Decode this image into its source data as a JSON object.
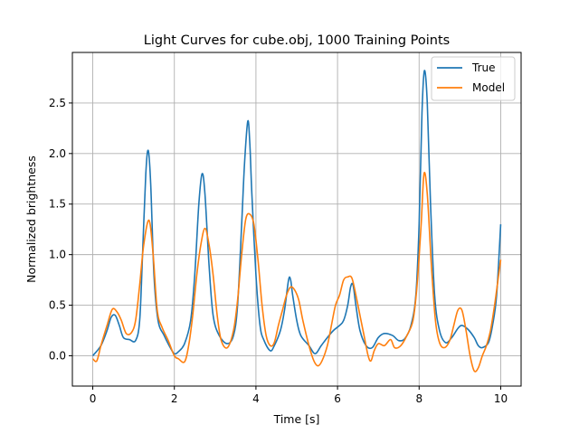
{
  "chart_data": {
    "type": "line",
    "title": "Light Curves for cube.obj, 1000 Training Points",
    "xlabel": "Time [s]",
    "ylabel": "Normalized brightness",
    "xlim": [
      -0.5,
      10.5
    ],
    "ylim": [
      -0.3,
      3.0
    ],
    "xticks": [
      0,
      2,
      4,
      6,
      8,
      10
    ],
    "yticks": [
      0.0,
      0.5,
      1.0,
      1.5,
      2.0,
      2.5
    ],
    "grid": true,
    "legend_position": "top-right",
    "series": [
      {
        "name": "True",
        "color": "#1f77b4",
        "points": [
          [
            0,
            0.0
          ],
          [
            0.2,
            0.1
          ],
          [
            0.35,
            0.25
          ],
          [
            0.45,
            0.38
          ],
          [
            0.55,
            0.4
          ],
          [
            0.65,
            0.3
          ],
          [
            0.75,
            0.18
          ],
          [
            0.9,
            0.16
          ],
          [
            1.05,
            0.15
          ],
          [
            1.15,
            0.35
          ],
          [
            1.22,
            1.0
          ],
          [
            1.3,
            1.8
          ],
          [
            1.36,
            2.03
          ],
          [
            1.42,
            1.7
          ],
          [
            1.5,
            0.8
          ],
          [
            1.6,
            0.35
          ],
          [
            1.75,
            0.2
          ],
          [
            1.9,
            0.08
          ],
          [
            2.0,
            0.02
          ],
          [
            2.1,
            0.04
          ],
          [
            2.25,
            0.12
          ],
          [
            2.4,
            0.35
          ],
          [
            2.5,
            0.8
          ],
          [
            2.6,
            1.5
          ],
          [
            2.68,
            1.8
          ],
          [
            2.75,
            1.6
          ],
          [
            2.85,
            0.9
          ],
          [
            2.95,
            0.4
          ],
          [
            3.1,
            0.2
          ],
          [
            3.3,
            0.12
          ],
          [
            3.45,
            0.2
          ],
          [
            3.55,
            0.5
          ],
          [
            3.65,
            1.3
          ],
          [
            3.72,
            1.9
          ],
          [
            3.8,
            2.32
          ],
          [
            3.85,
            2.1
          ],
          [
            3.9,
            1.6
          ],
          [
            4.0,
            0.8
          ],
          [
            4.1,
            0.3
          ],
          [
            4.2,
            0.15
          ],
          [
            4.35,
            0.05
          ],
          [
            4.45,
            0.1
          ],
          [
            4.6,
            0.25
          ],
          [
            4.7,
            0.45
          ],
          [
            4.8,
            0.75
          ],
          [
            4.85,
            0.75
          ],
          [
            4.9,
            0.6
          ],
          [
            5.0,
            0.35
          ],
          [
            5.1,
            0.2
          ],
          [
            5.3,
            0.1
          ],
          [
            5.45,
            0.02
          ],
          [
            5.6,
            0.1
          ],
          [
            5.75,
            0.18
          ],
          [
            5.9,
            0.25
          ],
          [
            6.05,
            0.3
          ],
          [
            6.15,
            0.35
          ],
          [
            6.25,
            0.5
          ],
          [
            6.32,
            0.68
          ],
          [
            6.38,
            0.7
          ],
          [
            6.45,
            0.5
          ],
          [
            6.55,
            0.25
          ],
          [
            6.7,
            0.1
          ],
          [
            6.85,
            0.08
          ],
          [
            7.0,
            0.18
          ],
          [
            7.15,
            0.22
          ],
          [
            7.35,
            0.2
          ],
          [
            7.5,
            0.15
          ],
          [
            7.65,
            0.17
          ],
          [
            7.8,
            0.3
          ],
          [
            7.92,
            0.6
          ],
          [
            8.0,
            1.3
          ],
          [
            8.07,
            2.4
          ],
          [
            8.13,
            2.82
          ],
          [
            8.2,
            2.5
          ],
          [
            8.28,
            1.5
          ],
          [
            8.38,
            0.6
          ],
          [
            8.5,
            0.25
          ],
          [
            8.65,
            0.13
          ],
          [
            8.8,
            0.18
          ],
          [
            8.95,
            0.27
          ],
          [
            9.05,
            0.3
          ],
          [
            9.2,
            0.26
          ],
          [
            9.35,
            0.18
          ],
          [
            9.45,
            0.1
          ],
          [
            9.55,
            0.08
          ],
          [
            9.7,
            0.13
          ],
          [
            9.8,
            0.3
          ],
          [
            9.9,
            0.6
          ],
          [
            10.0,
            1.3
          ]
        ]
      },
      {
        "name": "Model",
        "color": "#ff7f0e",
        "points": [
          [
            0,
            -0.03
          ],
          [
            0.1,
            -0.05
          ],
          [
            0.2,
            0.1
          ],
          [
            0.35,
            0.3
          ],
          [
            0.48,
            0.46
          ],
          [
            0.6,
            0.43
          ],
          [
            0.7,
            0.35
          ],
          [
            0.82,
            0.22
          ],
          [
            0.95,
            0.23
          ],
          [
            1.05,
            0.35
          ],
          [
            1.15,
            0.7
          ],
          [
            1.25,
            1.1
          ],
          [
            1.38,
            1.34
          ],
          [
            1.48,
            1.0
          ],
          [
            1.58,
            0.45
          ],
          [
            1.7,
            0.28
          ],
          [
            1.85,
            0.15
          ],
          [
            2.0,
            0.0
          ],
          [
            2.1,
            -0.03
          ],
          [
            2.25,
            -0.06
          ],
          [
            2.35,
            0.1
          ],
          [
            2.45,
            0.4
          ],
          [
            2.55,
            0.8
          ],
          [
            2.65,
            1.1
          ],
          [
            2.75,
            1.26
          ],
          [
            2.85,
            1.1
          ],
          [
            2.95,
            0.8
          ],
          [
            3.05,
            0.4
          ],
          [
            3.15,
            0.15
          ],
          [
            3.3,
            0.08
          ],
          [
            3.45,
            0.25
          ],
          [
            3.55,
            0.55
          ],
          [
            3.65,
            1.0
          ],
          [
            3.75,
            1.35
          ],
          [
            3.85,
            1.4
          ],
          [
            3.95,
            1.3
          ],
          [
            4.05,
            0.95
          ],
          [
            4.15,
            0.5
          ],
          [
            4.25,
            0.2
          ],
          [
            4.35,
            0.1
          ],
          [
            4.45,
            0.13
          ],
          [
            4.55,
            0.3
          ],
          [
            4.65,
            0.45
          ],
          [
            4.75,
            0.6
          ],
          [
            4.85,
            0.68
          ],
          [
            4.95,
            0.65
          ],
          [
            5.05,
            0.55
          ],
          [
            5.15,
            0.35
          ],
          [
            5.3,
            0.1
          ],
          [
            5.42,
            -0.05
          ],
          [
            5.52,
            -0.1
          ],
          [
            5.62,
            -0.05
          ],
          [
            5.75,
            0.1
          ],
          [
            5.85,
            0.3
          ],
          [
            5.95,
            0.5
          ],
          [
            6.05,
            0.6
          ],
          [
            6.15,
            0.75
          ],
          [
            6.25,
            0.78
          ],
          [
            6.35,
            0.77
          ],
          [
            6.45,
            0.6
          ],
          [
            6.55,
            0.4
          ],
          [
            6.65,
            0.2
          ],
          [
            6.75,
            0.0
          ],
          [
            6.82,
            -0.05
          ],
          [
            6.9,
            0.05
          ],
          [
            7.0,
            0.12
          ],
          [
            7.15,
            0.1
          ],
          [
            7.3,
            0.16
          ],
          [
            7.4,
            0.08
          ],
          [
            7.55,
            0.1
          ],
          [
            7.7,
            0.2
          ],
          [
            7.85,
            0.35
          ],
          [
            7.95,
            0.7
          ],
          [
            8.05,
            1.3
          ],
          [
            8.12,
            1.8
          ],
          [
            8.2,
            1.6
          ],
          [
            8.3,
            0.9
          ],
          [
            8.4,
            0.35
          ],
          [
            8.5,
            0.13
          ],
          [
            8.62,
            0.08
          ],
          [
            8.75,
            0.15
          ],
          [
            8.85,
            0.3
          ],
          [
            8.95,
            0.45
          ],
          [
            9.05,
            0.45
          ],
          [
            9.15,
            0.25
          ],
          [
            9.25,
            0.0
          ],
          [
            9.35,
            -0.15
          ],
          [
            9.45,
            -0.12
          ],
          [
            9.55,
            0.0
          ],
          [
            9.65,
            0.1
          ],
          [
            9.75,
            0.25
          ],
          [
            9.85,
            0.5
          ],
          [
            9.95,
            0.8
          ],
          [
            10.0,
            0.95
          ]
        ]
      }
    ]
  }
}
